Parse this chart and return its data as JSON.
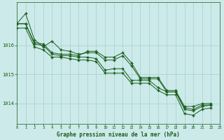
{
  "title": "Graphe pression niveau de la mer (hPa)",
  "background_color": "#cceaea",
  "grid_color": "#aacccc",
  "line_color": "#1a5c1a",
  "xlim": [
    0,
    23
  ],
  "ylim": [
    1013.3,
    1017.5
  ],
  "yticks": [
    1014,
    1015,
    1016
  ],
  "xticks": [
    0,
    1,
    2,
    3,
    4,
    5,
    6,
    7,
    8,
    9,
    10,
    11,
    12,
    13,
    14,
    15,
    16,
    17,
    18,
    19,
    20,
    21,
    22,
    23
  ],
  "series": [
    [
      1016.75,
      1017.1,
      1016.2,
      1015.95,
      1016.15,
      1015.85,
      1015.8,
      1015.7,
      1015.75,
      1015.75,
      1015.5,
      1015.5,
      1015.65,
      1015.3,
      1014.85,
      1014.85,
      1014.85,
      1014.4,
      1014.4,
      1013.85,
      1013.8,
      1013.95,
      1013.95,
      null
    ],
    [
      1016.75,
      1016.75,
      1016.1,
      1016.05,
      1015.75,
      1015.7,
      1015.7,
      1015.65,
      1015.8,
      1015.8,
      1015.6,
      1015.6,
      1015.75,
      1015.4,
      1014.9,
      1014.9,
      1014.9,
      1014.45,
      1014.45,
      1013.9,
      1013.9,
      1014.0,
      1014.0,
      null
    ],
    [
      1016.75,
      1016.75,
      1016.05,
      1016.0,
      1015.7,
      1015.65,
      1015.65,
      1015.6,
      1015.6,
      1015.55,
      1015.15,
      1015.2,
      1015.2,
      1014.8,
      1014.8,
      1014.8,
      1014.55,
      1014.4,
      1014.4,
      1013.8,
      1013.75,
      1013.9,
      1013.95,
      null
    ],
    [
      1016.6,
      1016.6,
      1015.95,
      1015.85,
      1015.6,
      1015.6,
      1015.55,
      1015.5,
      1015.5,
      1015.45,
      1015.05,
      1015.05,
      1015.05,
      1014.7,
      1014.7,
      1014.7,
      1014.45,
      1014.3,
      1014.3,
      1013.65,
      1013.6,
      1013.8,
      1013.85,
      null
    ]
  ]
}
